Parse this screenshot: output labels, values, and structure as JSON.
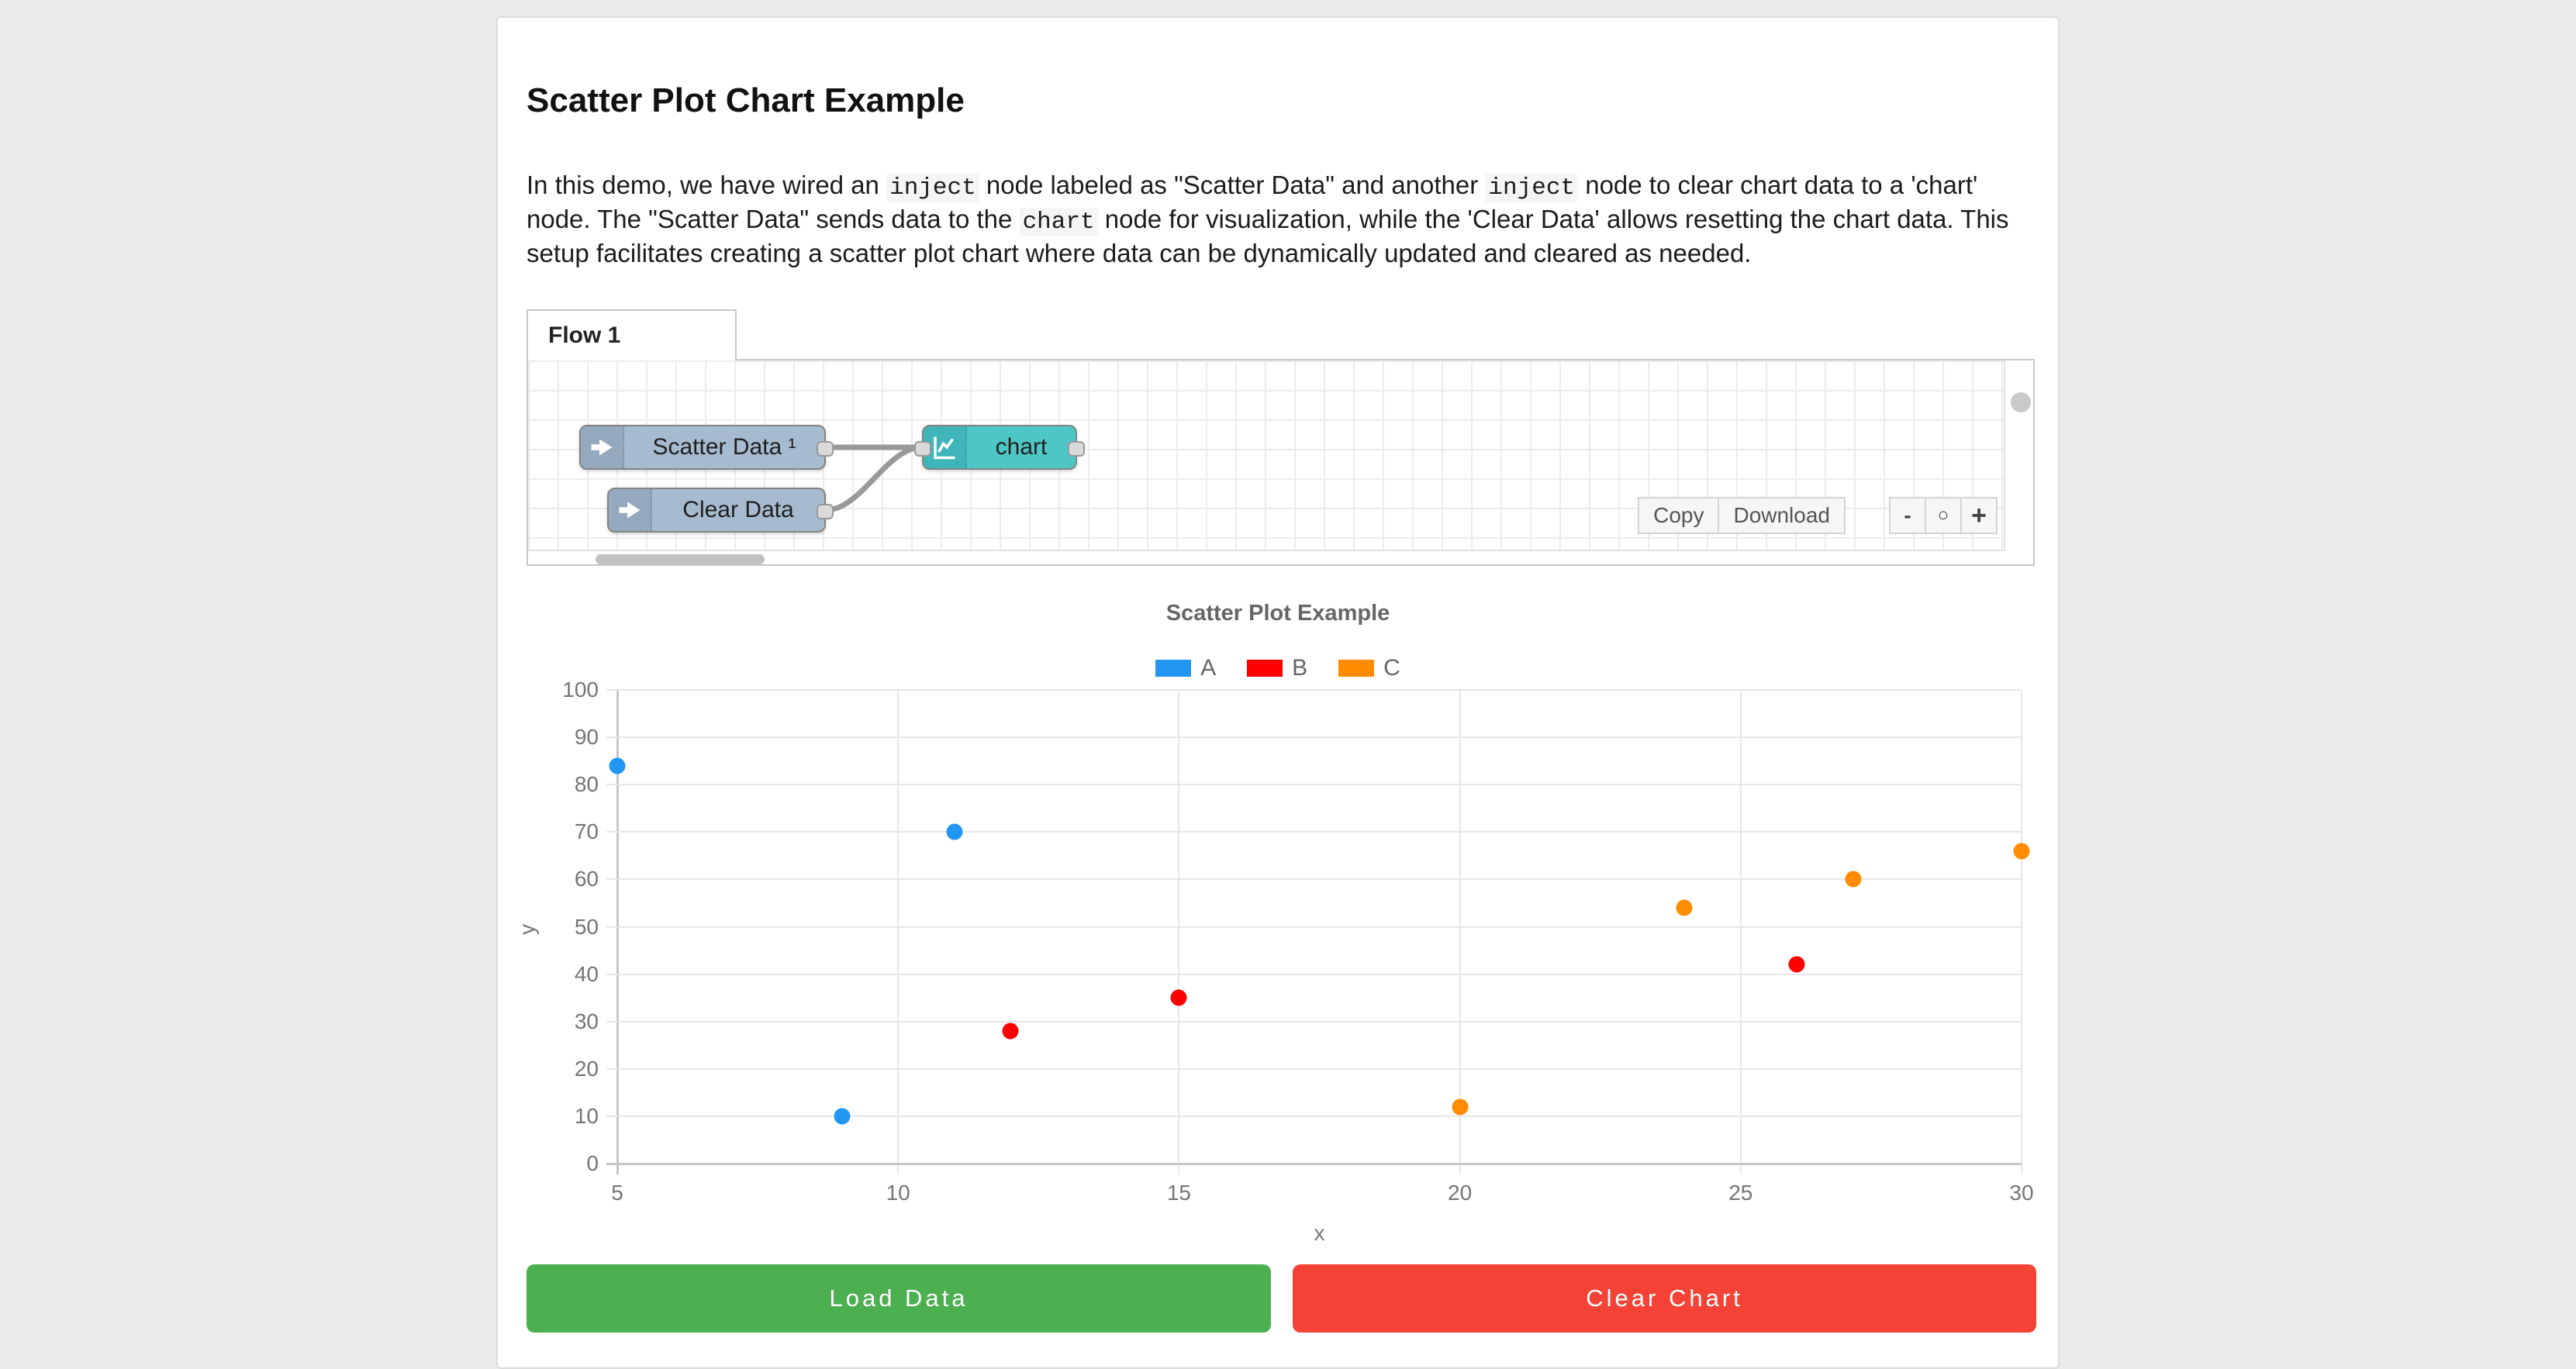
{
  "page": {
    "title": "Scatter Plot Chart Example"
  },
  "description": {
    "segments": [
      {
        "text": "In this demo, we have wired an "
      },
      {
        "text": "inject",
        "code": true
      },
      {
        "text": " node labeled as \"Scatter Data\" and another "
      },
      {
        "text": "inject",
        "code": true
      },
      {
        "text": " node to clear chart data to a 'chart' node. The \"Scatter Data\" sends data to the "
      },
      {
        "text": "chart",
        "code": true
      },
      {
        "text": " node for visualization, while the 'Clear Data' allows resetting the chart data. This setup facilitates creating a scatter plot chart where data can be dynamically updated and cleared as needed."
      }
    ]
  },
  "flow_editor": {
    "tab_label": "Flow 1",
    "nodes": [
      {
        "id": "scatter-data",
        "type": "inject",
        "label": "Scatter Data ¹"
      },
      {
        "id": "clear-data",
        "type": "inject",
        "label": "Clear Data"
      },
      {
        "id": "chart",
        "type": "chart",
        "label": "chart"
      }
    ],
    "toolbar": {
      "copy_label": "Copy",
      "download_label": "Download",
      "zoom_out_label": "-",
      "zoom_reset_label": "○",
      "zoom_in_label": "+"
    }
  },
  "chart_data": {
    "type": "scatter",
    "title": "Scatter Plot Example",
    "xlabel": "x",
    "ylabel": "y",
    "xlim": [
      5,
      30
    ],
    "ylim": [
      0,
      100
    ],
    "x_ticks": [
      5,
      10,
      15,
      20,
      25,
      30
    ],
    "y_ticks": [
      0,
      10,
      20,
      30,
      40,
      50,
      60,
      70,
      80,
      90,
      100
    ],
    "grid": true,
    "legend_position": "top",
    "series": [
      {
        "name": "A",
        "color": "#2196f3",
        "points": [
          [
            5,
            84
          ],
          [
            9,
            10
          ],
          [
            11,
            70
          ]
        ]
      },
      {
        "name": "B",
        "color": "#ff0000",
        "points": [
          [
            12,
            28
          ],
          [
            15,
            35
          ],
          [
            26,
            42
          ]
        ]
      },
      {
        "name": "C",
        "color": "#ff8c00",
        "points": [
          [
            20,
            12
          ],
          [
            24,
            54
          ],
          [
            27,
            60
          ],
          [
            30,
            66
          ]
        ]
      }
    ]
  },
  "actions": {
    "load_label": "Load Data",
    "load_color": "#4caf50",
    "clear_label": "Clear Chart",
    "clear_color": "#f44336"
  }
}
